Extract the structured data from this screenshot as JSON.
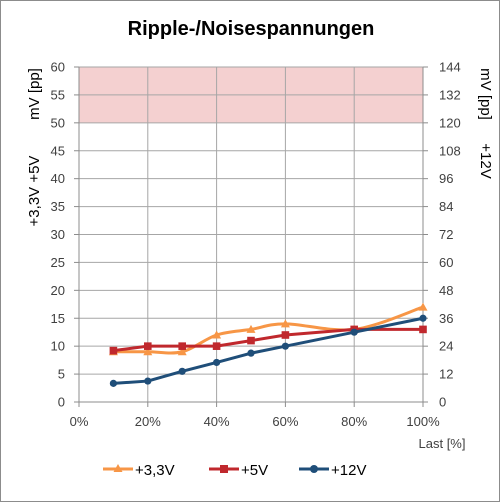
{
  "chart_data": {
    "type": "line",
    "title": "Ripple-/Noisespannungen",
    "x": [
      "10%",
      "20%",
      "30%",
      "40%",
      "50%",
      "60%",
      "80%",
      "100%"
    ],
    "x_axis": {
      "ticks": [
        "0%",
        "20%",
        "40%",
        "60%",
        "80%",
        "100%"
      ],
      "label": "Last [%]",
      "range": [
        0,
        100
      ]
    },
    "y_left": {
      "label_parts": [
        "+3,3V +5V",
        "mV [pp]"
      ],
      "range": [
        0,
        60
      ],
      "ticks": [
        "0",
        "5",
        "10",
        "15",
        "20",
        "25",
        "30",
        "35",
        "40",
        "45",
        "50",
        "55",
        "60"
      ]
    },
    "y_right": {
      "label_parts": [
        "+12V",
        "mV [pp]"
      ],
      "range": [
        0,
        144
      ],
      "ticks": [
        "0",
        "12",
        "24",
        "36",
        "48",
        "60",
        "72",
        "84",
        "96",
        "108",
        "120",
        "132",
        "144"
      ]
    },
    "limit_band": {
      "from": 50,
      "to": 60,
      "axis": "left",
      "color": "#f4d0d0"
    },
    "grid": true,
    "legend_position": "bottom",
    "series": [
      {
        "name": "+3,3V",
        "axis": "left",
        "color": "#f79646",
        "marker": "triangle",
        "x": [
          10,
          20,
          30,
          40,
          50,
          60,
          80,
          100
        ],
        "values": [
          9,
          9,
          9,
          12,
          13,
          14,
          13,
          17
        ]
      },
      {
        "name": "+5V",
        "axis": "left",
        "color": "#c0282d",
        "marker": "square",
        "x": [
          10,
          20,
          30,
          40,
          50,
          60,
          80,
          100
        ],
        "values": [
          9.2,
          10,
          10,
          10,
          11,
          12,
          13,
          13
        ]
      },
      {
        "name": "+12V",
        "axis": "right",
        "color": "#1f4e79",
        "marker": "circle",
        "x": [
          10,
          20,
          30,
          40,
          50,
          60,
          80,
          100
        ],
        "values": [
          8,
          9,
          13.2,
          17,
          21,
          24,
          30,
          36
        ]
      }
    ]
  }
}
